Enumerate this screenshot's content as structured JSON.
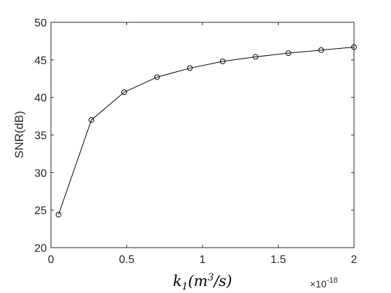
{
  "chart_data": {
    "type": "line",
    "xlabel": "k_1(m^3/s)",
    "xlabel_parts": {
      "k": "k",
      "sub": "1",
      "open": "(m",
      "sup": "3",
      "close": "/s)"
    },
    "ylabel": "SNR(dB)",
    "x_exponent_label": {
      "base": "×10",
      "exp": "-18"
    },
    "xlim": [
      0,
      2
    ],
    "ylim": [
      20,
      50
    ],
    "xticks": [
      0,
      0.5,
      1,
      1.5,
      2
    ],
    "xtick_labels": [
      "0",
      "0.5",
      "1",
      "1.5",
      "2"
    ],
    "yticks": [
      20,
      25,
      30,
      35,
      40,
      45,
      50
    ],
    "ytick_labels": [
      "20",
      "25",
      "30",
      "35",
      "40",
      "45",
      "50"
    ],
    "grid": false,
    "series": [
      {
        "marker": "circle",
        "color": "#000000",
        "x": [
          0.05,
          0.2667,
          0.4833,
          0.7,
          0.9167,
          1.1333,
          1.35,
          1.5667,
          1.7833,
          2.0
        ],
        "y": [
          24.4,
          37.0,
          40.7,
          42.7,
          43.9,
          44.8,
          45.4,
          45.9,
          46.3,
          46.7
        ]
      }
    ]
  }
}
